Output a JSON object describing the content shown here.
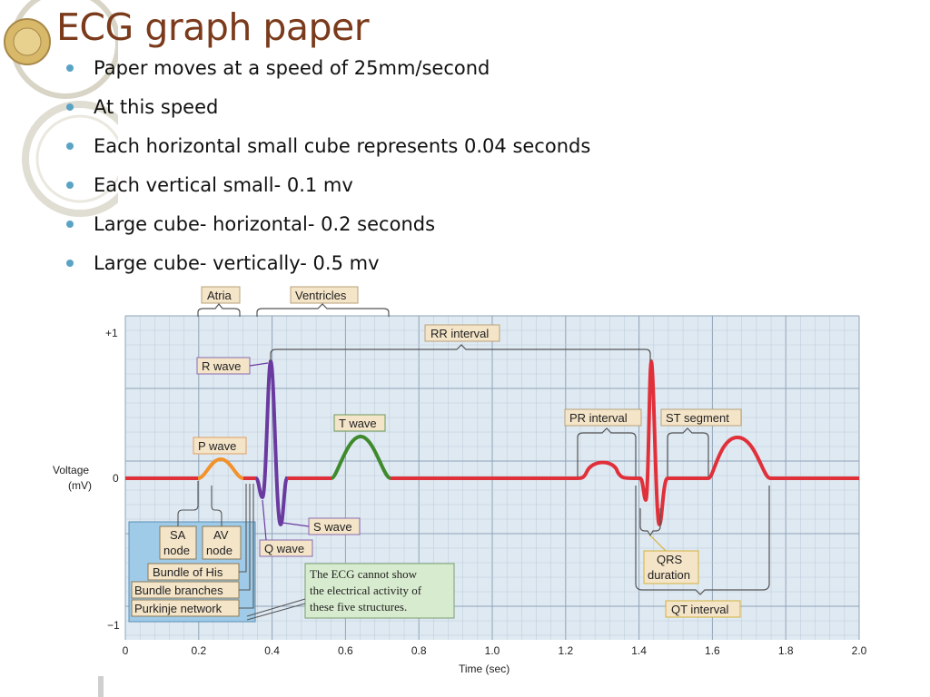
{
  "slide": {
    "title": "ECG graph paper",
    "bullets": [
      "Paper moves at a speed of 25mm/second",
      "At this speed",
      "Each horizontal small cube represents 0.04 seconds",
      "Each vertical small- 0.1 mv",
      "Large cube- horizontal- 0.2 seconds",
      "Large cube- vertically- 0.5 mv"
    ],
    "bullet_color": "#5aa3c5",
    "title_color": "#7a3a1b"
  },
  "figure": {
    "colors": {
      "grid_bg": "#dfe9f2",
      "grid_minor": "#b9cad9",
      "grid_major": "#8fa3b8",
      "baseline": "#e0303a",
      "p_wave": "#f2922c",
      "qrs": "#6a3aa0",
      "t_wave": "#3f8a2c",
      "label_bg": "#f4e4c8",
      "note_bg": "#d7ebce",
      "conduction_bg": "#9fcbe8"
    },
    "axis": {
      "x_label": "Time (sec)",
      "y_label_line1": "Voltage",
      "y_label_line2": "(mV)",
      "x_ticks": [
        "0",
        "0.2",
        "0.4",
        "0.6",
        "0.8",
        "1.0",
        "1.2",
        "1.4",
        "1.6",
        "1.8",
        "2.0"
      ],
      "y_ticks": [
        "+1",
        "0",
        "−1"
      ]
    },
    "labels": {
      "atria": "Atria",
      "ventricles": "Ventricles",
      "rr_interval": "RR interval",
      "r_wave": "R wave",
      "t_wave": "T wave",
      "p_wave": "P wave",
      "s_wave": "S wave",
      "q_wave": "Q wave",
      "pr_interval": "PR interval",
      "st_segment": "ST segment",
      "qrs_duration_1": "QRS",
      "qrs_duration_2": "duration",
      "qt_interval": "QT interval",
      "sa_node_1": "SA",
      "sa_node_2": "node",
      "av_node_1": "AV",
      "av_node_2": "node",
      "bundle_of_his": "Bundle of His",
      "bundle_branches": "Bundle branches",
      "purkinje_network": "Purkinje network"
    },
    "note_lines": [
      "The ECG cannot show",
      "the electrical activity of",
      "these five structures."
    ]
  }
}
